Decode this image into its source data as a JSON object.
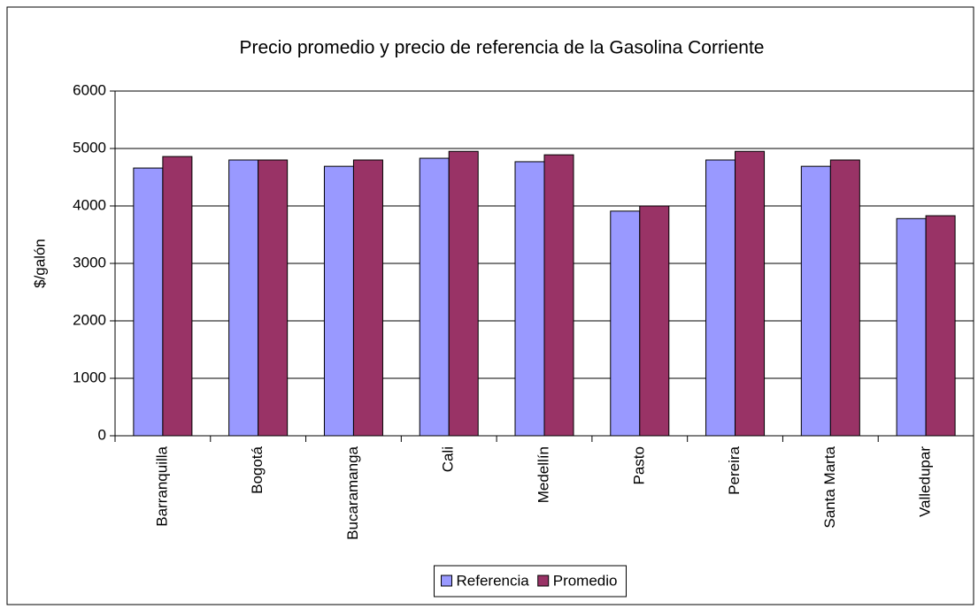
{
  "chart_data": {
    "type": "bar",
    "title": "Precio promedio y precio de referencia de la Gasolina Corriente",
    "ylabel": "$/galón",
    "categories": [
      "Barranquilla",
      "Bogotá",
      "Bucaramanga",
      "Cali",
      "Medellín",
      "Pasto",
      "Pereira",
      "Santa Marta",
      "Valledupar"
    ],
    "series": [
      {
        "name": "Referencia",
        "color": "#9999ff",
        "values": [
          4660,
          4800,
          4690,
          4830,
          4770,
          3910,
          4800,
          4690,
          3780
        ]
      },
      {
        "name": "Promedio",
        "color": "#993366",
        "values": [
          4860,
          4800,
          4800,
          4950,
          4890,
          4000,
          4950,
          4800,
          3830
        ]
      }
    ],
    "ylim": [
      0,
      6000
    ],
    "yticks": [
      0,
      1000,
      2000,
      3000,
      4000,
      5000,
      6000
    ],
    "grid": true,
    "legend": "bottom"
  }
}
